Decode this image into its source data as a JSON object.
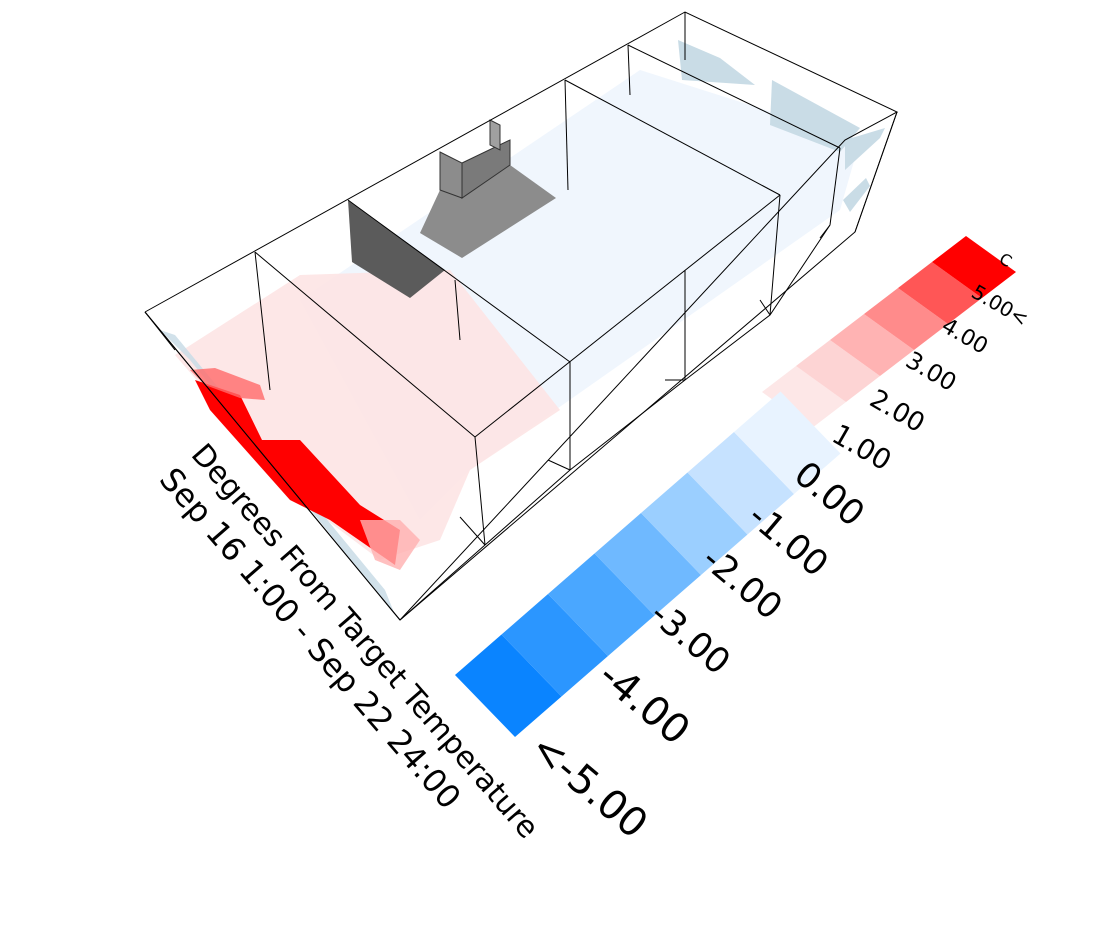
{
  "title": {
    "line1": "Degrees From Target Temperature",
    "line2": "Sep 16 1:00 - Sep 22 24:00"
  },
  "legend": {
    "unit": "C",
    "cold_labels": [
      "<-5.00",
      "-4.00",
      "-3.00",
      "-2.00",
      "-1.00",
      "0.00"
    ],
    "warm_labels": [
      "1.00",
      "2.00",
      "3.00",
      "4.00",
      "5.00<"
    ],
    "cold_colors": [
      "#0a84ff",
      "#2b96ff",
      "#4aa7ff",
      "#6fb9ff",
      "#9bcfff",
      "#c6e2ff",
      "#e8f3ff"
    ],
    "warm_colors": [
      "#fde7e7",
      "#fdd4d4",
      "#ffb3b3",
      "#ff8b8b",
      "#ff5656",
      "#ff0000"
    ]
  },
  "colors": {
    "warm_floor": "#fdeaea",
    "cool_floor": "#eef5fd",
    "hot_zone": "#ff0000",
    "wall_blue": "#c9dce6",
    "fixture_dark": "#5b5b5b",
    "fixture_mid": "#8c8c8c"
  }
}
